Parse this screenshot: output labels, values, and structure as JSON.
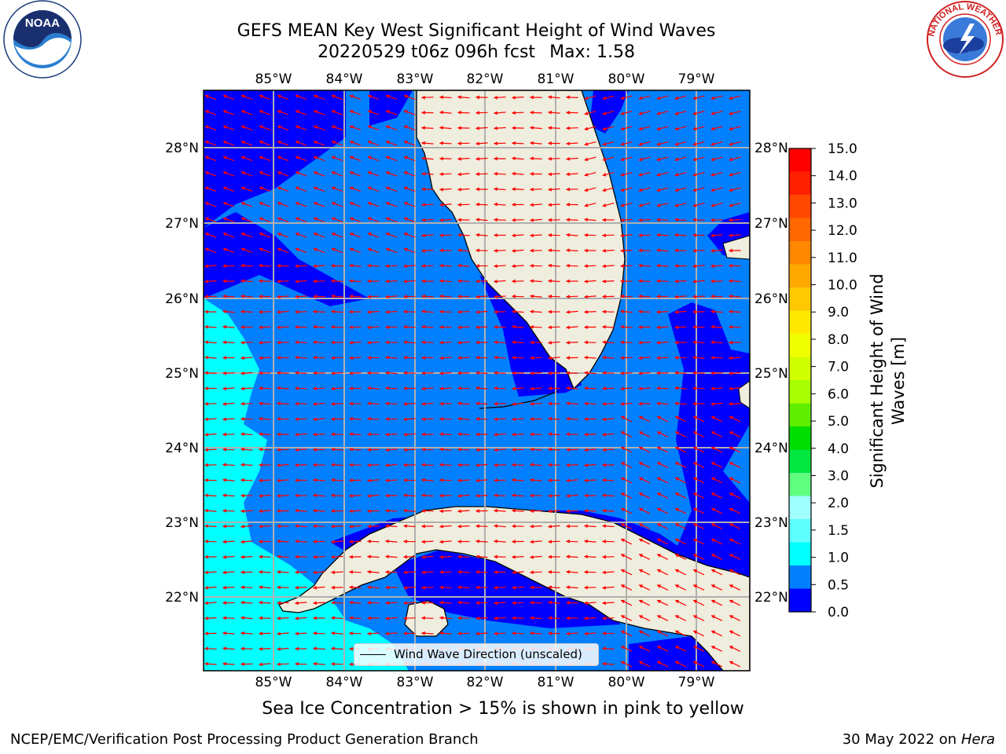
{
  "header": {
    "title_line1": "GEFS MEAN Key West Significant Height of Wind Waves",
    "title_line2": "20220529 t06z 096h fcst",
    "max_label": "Max: 1.58"
  },
  "logos": {
    "left": "NOAA",
    "right": "NATIONAL WEATHER SERVICE"
  },
  "map": {
    "lon_labels": [
      "85°W",
      "84°W",
      "83°W",
      "82°W",
      "81°W",
      "80°W",
      "79°W"
    ],
    "lat_labels": [
      "28°N",
      "27°N",
      "26°N",
      "25°N",
      "24°N",
      "23°N",
      "22°N"
    ],
    "legend_text": "Wind Wave Direction (unscaled)",
    "colors": {
      "land": "#efeddd",
      "coast": "#000000",
      "grid": "#b0b0b0",
      "arrow": "#ff0000",
      "band_0_0_5": "#0000ff",
      "band_0_5_1_0": "#0080ff",
      "band_1_0_1_5": "#00ffff",
      "band_1_5_2_0": "#40ffff"
    }
  },
  "colorbar": {
    "title_line1": "Significant Height of Wind",
    "title_line2": "Waves [m]",
    "ticks": [
      "15.0",
      "14.0",
      "13.0",
      "12.0",
      "11.0",
      "10.0",
      "9.0",
      "8.0",
      "7.0",
      "6.0",
      "5.0",
      "4.0",
      "3.0",
      "2.0",
      "1.5",
      "1.0",
      "0.5",
      "0.0"
    ],
    "colors_top_to_bottom": [
      "#ff0000",
      "#ff2000",
      "#ff4800",
      "#ff6800",
      "#ff8800",
      "#ffa800",
      "#ffc800",
      "#ffe800",
      "#f0ff00",
      "#d0ff00",
      "#a8ff00",
      "#60ee00",
      "#00dd00",
      "#00e840",
      "#60ff80",
      "#a0ffff",
      "#60ffff",
      "#00ffff",
      "#0080ff",
      "#0000ff"
    ]
  },
  "note": "Sea Ice Concentration > 15% is shown in pink to yellow",
  "footer": {
    "left": "NCEP/EMC/Verification Post Processing Product Generation Branch",
    "date": "30 May 2022 on",
    "host": "Hera"
  }
}
